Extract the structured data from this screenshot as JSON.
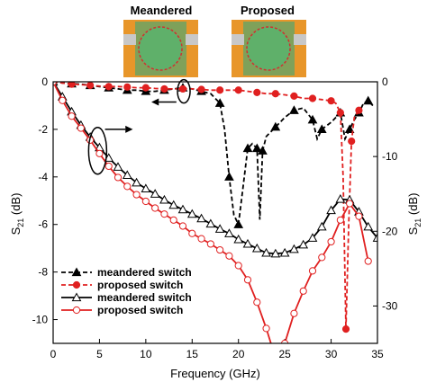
{
  "chart_data": {
    "type": "line",
    "xlabel": "Frequency (GHz)",
    "ylabel_left": "S",
    "ylabel_left_sub": "21",
    "ylabel_left_unit": " (dB)",
    "ylabel_right": "S",
    "ylabel_right_sub": "21",
    "ylabel_right_unit": " (dB)",
    "xlim": [
      0,
      35
    ],
    "ylim_left": [
      -11,
      0
    ],
    "ylim_right": [
      -35,
      0
    ],
    "xticks": [
      0,
      5,
      10,
      15,
      20,
      25,
      30,
      35
    ],
    "yticks_left": [
      0,
      -2,
      -4,
      -6,
      -8,
      -10
    ],
    "yticks_right": [
      0,
      -10,
      -20,
      -30
    ],
    "insets": [
      {
        "title": "Meandered"
      },
      {
        "title": "Proposed"
      }
    ],
    "legend": [
      {
        "label": "meandered switch",
        "style": "dashed",
        "marker": "filled-triangle",
        "color": "#000000"
      },
      {
        "label": "proposed switch",
        "style": "dashed",
        "marker": "filled-circle",
        "color": "#e02020"
      },
      {
        "label": "meandered switch",
        "style": "solid",
        "marker": "open-triangle",
        "color": "#000000"
      },
      {
        "label": "proposed switch",
        "style": "solid",
        "marker": "open-circle",
        "color": "#e02020"
      }
    ],
    "series": [
      {
        "axis": "left",
        "style": "dashed",
        "marker": "filled-triangle",
        "color": "#000000",
        "x": [
          0,
          1,
          2,
          3,
          4,
          5,
          6,
          7,
          8,
          9,
          10,
          11,
          12,
          13,
          14,
          15,
          16,
          17,
          18,
          18.5,
          19,
          19.5,
          20,
          20.5,
          21,
          21.5,
          22,
          22.3,
          22.6,
          23,
          24,
          25,
          26,
          27,
          28,
          28.5,
          29,
          30,
          31,
          31.5,
          32,
          32.5,
          33,
          33.5,
          34,
          34.5
        ],
        "y": [
          0,
          -0.05,
          -0.08,
          -0.1,
          -0.15,
          -0.2,
          -0.25,
          -0.3,
          -0.35,
          -0.35,
          -0.4,
          -0.4,
          -0.35,
          -0.3,
          -0.25,
          -0.3,
          -0.4,
          -0.5,
          -0.9,
          -2.0,
          -4.0,
          -5.6,
          -6.0,
          -4.4,
          -2.8,
          -2.6,
          -2.8,
          -5.8,
          -2.9,
          -2.3,
          -1.9,
          -1.5,
          -1.2,
          -1.1,
          -1.6,
          -2.4,
          -2.0,
          -1.7,
          -1.3,
          -2.4,
          -2.0,
          -1.6,
          -1.3,
          -0.9,
          -0.8,
          -1.0
        ]
      },
      {
        "axis": "left",
        "style": "dashed",
        "marker": "filled-circle",
        "color": "#e02020",
        "x": [
          0,
          1,
          2,
          3,
          4,
          5,
          6,
          7,
          8,
          9,
          10,
          11,
          12,
          13,
          14,
          15,
          16,
          17,
          18,
          19,
          20,
          21,
          22,
          23,
          24,
          25,
          26,
          27,
          28,
          29,
          30,
          30.5,
          31,
          31.3,
          31.6,
          31.9,
          32.2,
          32.5,
          33
        ],
        "y": [
          0,
          -0.05,
          -0.1,
          -0.12,
          -0.15,
          -0.18,
          -0.2,
          -0.2,
          -0.22,
          -0.25,
          -0.25,
          -0.28,
          -0.3,
          -0.3,
          -0.3,
          -0.3,
          -0.32,
          -0.35,
          -0.35,
          -0.35,
          -0.35,
          -0.4,
          -0.45,
          -0.5,
          -0.5,
          -0.55,
          -0.6,
          -0.7,
          -0.7,
          -0.75,
          -0.8,
          -0.9,
          -1.3,
          -4.0,
          -10.4,
          -6.0,
          -2.5,
          -1.5,
          -1.2
        ]
      },
      {
        "axis": "right",
        "style": "solid",
        "marker": "open-triangle",
        "color": "#000000",
        "x": [
          0,
          1,
          2,
          3,
          4,
          5,
          6,
          7,
          8,
          9,
          10,
          11,
          12,
          13,
          14,
          15,
          16,
          17,
          18,
          19,
          20,
          21,
          22,
          23,
          24,
          25,
          26,
          27,
          28,
          29,
          30,
          31,
          32,
          33,
          34,
          35
        ],
        "y": [
          0,
          -2.0,
          -4.0,
          -5.8,
          -7.4,
          -8.8,
          -10.2,
          -11.4,
          -12.5,
          -13.5,
          -14.3,
          -15.0,
          -15.8,
          -16.5,
          -17.1,
          -17.7,
          -18.3,
          -19.0,
          -19.7,
          -20.3,
          -21.1,
          -21.7,
          -22.3,
          -22.9,
          -23.0,
          -22.9,
          -22.4,
          -21.8,
          -20.9,
          -19.4,
          -17.2,
          -15.7,
          -15.8,
          -17.4,
          -19.4,
          -20.9
        ]
      },
      {
        "axis": "right",
        "style": "solid",
        "marker": "open-circle",
        "color": "#e02020",
        "x": [
          0,
          1,
          2,
          3,
          4,
          5,
          6,
          7,
          8,
          9,
          10,
          11,
          12,
          13,
          14,
          15,
          16,
          17,
          18,
          19,
          20,
          21,
          22,
          23,
          24,
          25,
          26,
          27,
          28,
          29,
          30,
          31,
          32,
          33,
          34
        ],
        "y": [
          0,
          -2.5,
          -4.6,
          -6.2,
          -7.8,
          -9.6,
          -11.3,
          -12.8,
          -14.0,
          -15.1,
          -16.0,
          -16.9,
          -17.7,
          -18.5,
          -19.3,
          -20.3,
          -21.0,
          -21.7,
          -22.5,
          -23.3,
          -24.6,
          -26.5,
          -29.5,
          -33.0,
          -37.0,
          -35.0,
          -31.0,
          -28.0,
          -25.3,
          -23.5,
          -21.4,
          -18.5,
          -16.3,
          -18.0,
          -24.0
        ]
      }
    ]
  }
}
